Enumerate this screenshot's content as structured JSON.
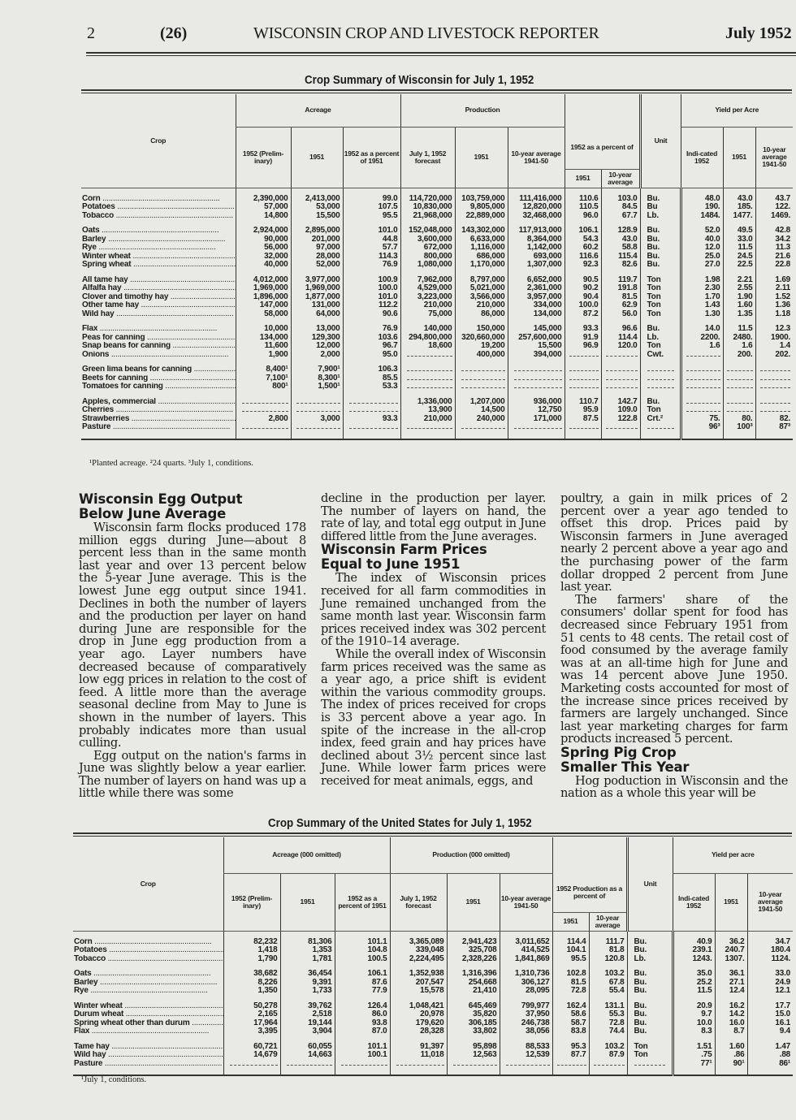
{
  "header": {
    "page_number": "2",
    "issue_page": "(26)",
    "publication": "WISCONSIN CROP AND LIVESTOCK REPORTER",
    "date": "July 1952"
  },
  "wi_table": {
    "title": "Crop Summary of Wisconsin for July 1, 1952",
    "headers": {
      "crop": "Crop",
      "acreage": "Acreage",
      "production": "Production",
      "pct_of": "1952 as a percent of",
      "unit": "Unit",
      "yield": "Yield per Acre",
      "acr_1952": "1952 (Prelim-inary)",
      "acr_1951": "1951",
      "acr_pct": "1952 as a percent of 1951",
      "prod_fc": "July 1, 1952 forecast",
      "prod_1951": "1951",
      "prod_avg": "10-year average 1941-50",
      "pct_1951": "1951",
      "pct_avg": "10-year average",
      "y_1952": "Indi-cated 1952",
      "y_1951": "1951",
      "y_avg": "10-year average 1941-50"
    },
    "groups": [
      [
        [
          "Corn",
          "2,390,000",
          "2,413,000",
          "99.0",
          "114,720,000",
          "103,759,000",
          "111,416,000",
          "110.6",
          "103.0",
          "Bu.",
          "48.0",
          "43.0",
          "43.7"
        ],
        [
          "Potatoes",
          "57,000",
          "53,000",
          "107.5",
          "10,830,000",
          "9,805,000",
          "12,820,000",
          "110.5",
          "84.5",
          "Bu",
          "190.",
          "185.",
          "122."
        ],
        [
          "Tobacco",
          "14,800",
          "15,500",
          "95.5",
          "21,968,000",
          "22,889,000",
          "32,468,000",
          "96.0",
          "67.7",
          "Lb.",
          "1484.",
          "1477.",
          "1469."
        ]
      ],
      [
        [
          "Oats",
          "2,924,000",
          "2,895,000",
          "101.0",
          "152,048,000",
          "143,302,000",
          "117,913,000",
          "106.1",
          "128.9",
          "Bu.",
          "52.0",
          "49.5",
          "42.8"
        ],
        [
          "Barley",
          "90,000",
          "201,000",
          "44.8",
          "3,600,000",
          "6,633,000",
          "8,364,000",
          "54.3",
          "43.0",
          "Bu.",
          "40.0",
          "33.0",
          "34.2"
        ],
        [
          "Rye",
          "56,000",
          "97,000",
          "57.7",
          "672,000",
          "1,116,000",
          "1,142,000",
          "60.2",
          "58.8",
          "Bu.",
          "12.0",
          "11.5",
          "11.3"
        ],
        [
          "Winter wheat",
          "32,000",
          "28,000",
          "114.3",
          "800,000",
          "686,000",
          "693,000",
          "116.6",
          "115.4",
          "Bu.",
          "25.0",
          "24.5",
          "21.6"
        ],
        [
          "Spring wheat",
          "40,000",
          "52,000",
          "76.9",
          "1,080,000",
          "1,170,000",
          "1,307,000",
          "92.3",
          "82.6",
          "Bu.",
          "27.0",
          "22.5",
          "22.8"
        ]
      ],
      [
        [
          "All tame hay",
          "4,012,000",
          "3,977,000",
          "100.9",
          "7,962,000",
          "8,797,000",
          "6,652,000",
          "90.5",
          "119.7",
          "Ton",
          "1.98",
          "2.21",
          "1.69"
        ],
        [
          "Alfalfa hay",
          "1,969,000",
          "1,969,000",
          "100.0",
          "4,529,000",
          "5,021,000",
          "2,361,000",
          "90.2",
          "191.8",
          "Ton",
          "2.30",
          "2.55",
          "2.11"
        ],
        [
          "Clover and timothy hay",
          "1,896,000",
          "1,877,000",
          "101.0",
          "3,223,000",
          "3,566,000",
          "3,957,000",
          "90.4",
          "81.5",
          "Ton",
          "1.70",
          "1.90",
          "1.52"
        ],
        [
          "Other tame hay",
          "147,000",
          "131,000",
          "112.2",
          "210,000",
          "210,000",
          "334,000",
          "100.0",
          "62.9",
          "Ton",
          "1.43",
          "1.60",
          "1.36"
        ],
        [
          "Wild hay",
          "58,000",
          "64,000",
          "90.6",
          "75,000",
          "86,000",
          "134,000",
          "87.2",
          "56.0",
          "Ton",
          "1.30",
          "1.35",
          "1.18"
        ]
      ],
      [
        [
          "Flax",
          "10,000",
          "13,000",
          "76.9",
          "140,000",
          "150,000",
          "145,000",
          "93.3",
          "96.6",
          "Bu.",
          "14.0",
          "11.5",
          "12.3"
        ],
        [
          "Peas for canning",
          "134,000",
          "129,300",
          "103.6",
          "294,800,000",
          "320,660,000",
          "257,600,000",
          "91.9",
          "114.4",
          "Lb.",
          "2200.",
          "2480.",
          "1900."
        ],
        [
          "Snap beans for canning",
          "11,600",
          "12,000",
          "96.7",
          "18,600",
          "19,200",
          "15,500",
          "96.9",
          "120.0",
          "Ton",
          "1.6",
          "1.6",
          "1.4"
        ],
        [
          "Onions",
          "1,900",
          "2,000",
          "95.0",
          "",
          "400,000",
          "394,000",
          "",
          "",
          "Cwt.",
          "",
          "200.",
          "202."
        ]
      ],
      [
        [
          "Green lima beans for canning",
          "8,400¹",
          "7,900¹",
          "106.3",
          "",
          "",
          "",
          "",
          "",
          "",
          "",
          "",
          ""
        ],
        [
          "Beets for canning",
          "7,100¹",
          "8,300¹",
          "85.5",
          "",
          "",
          "",
          "",
          "",
          "",
          "",
          "",
          ""
        ],
        [
          "Tomatoes for canning",
          "800¹",
          "1,500¹",
          "53.3",
          "",
          "",
          "",
          "",
          "",
          "",
          "",
          "",
          ""
        ]
      ],
      [
        [
          "Apples, commercial",
          "",
          "",
          "",
          "1,336,000",
          "1,207,000",
          "936,000",
          "110.7",
          "142.7",
          "Bu.",
          "",
          "",
          ""
        ],
        [
          "Cherries",
          "",
          "",
          "",
          "13,900",
          "14,500",
          "12,750",
          "95.9",
          "109.0",
          "Ton",
          "",
          "",
          ""
        ],
        [
          "Strawberries",
          "2,800",
          "3,000",
          "93.3",
          "210,000",
          "240,000",
          "171,000",
          "87.5",
          "122.8",
          "Crt.²",
          "75.",
          "80.",
          "82."
        ],
        [
          "Pasture",
          "",
          "",
          "",
          "",
          "",
          "",
          "",
          "",
          "",
          "96³",
          "100³",
          "87³"
        ]
      ]
    ],
    "footnote": "¹Planted acreage.   ²24 quarts.   ³July 1, conditions."
  },
  "articles": {
    "col1": {
      "heading1": "Wisconsin Egg Output",
      "heading2": "Below June Average",
      "paras": [
        "Wisconsin farm flocks produced 178 million eggs during June—about 8 percent less than in the same month last year and over 13 percent below the 5-year June average. This is the lowest June egg output since 1941. Declines in both the number of layers and the production per layer on hand during June are responsible for the drop in June egg production from a year ago. Layer numbers have decreased because of comparatively low egg prices in relation to the cost of feed. A little more than the average seasonal decline from May to June is shown in the number of layers. This probably indicates more than usual culling.",
        "Egg output on the nation's farms in June was slightly below a year earlier. The number of layers on hand was up a little while there was some"
      ]
    },
    "col2": {
      "cont": "decline in the production per layer. The number of layers on hand, the rate of lay, and total egg output in June differed little from the June averages.",
      "heading1": "Wisconsin Farm Prices",
      "heading2": "Equal to June 1951",
      "paras": [
        "The index of Wisconsin prices received for all farm commodities in June remained unchanged from the same month last year. Wisconsin farm prices received index was 302 percent of the 1910–14 average.",
        "While the overall index of Wisconsin farm prices received was the same as a year ago, a price shift is evident within the various commodity groups. The index of prices received for crops is 33 percent above a year ago. In spite of the increase in the all-crop index, feed grain and hay prices have declined about 3½ percent since last June. While lower farm prices were received for meat animals, eggs, and"
      ]
    },
    "col3": {
      "cont": "poultry, a gain in milk prices of 2 percent over a year ago tended to offset this drop. Prices paid by Wisconsin farmers in June averaged nearly 2 percent above a year ago and the purchasing power of the farm dollar dropped 2 percent from June last year.",
      "paras": [
        "The farmers' share of the consumers' dollar spent for food has decreased since February 1951 from 51 cents to 48 cents. The retail cost of food consumed by the average family was at an all-time high for June and was 14 percent above June 1950. Marketing costs accounted for most of the increase since prices received by farmers are largely unchanged. Since last year marketing charges for farm products increased 5 percent."
      ],
      "heading1": "Spring Pig Crop",
      "heading2": "Smaller This Year",
      "paras2": [
        "Hog poduction in Wisconsin and the nation as a whole this year will be"
      ]
    }
  },
  "us_table": {
    "title": "Crop Summary of the United States for July 1, 1952",
    "headers": {
      "crop": "Crop",
      "acreage": "Acreage (000 omitted)",
      "production": "Production (000 omitted)",
      "pct_of": "1952 Production as a percent of",
      "unit": "Unit",
      "yield": "Yield per acre",
      "acr_1952": "1952 (Prelim-inary)",
      "acr_1951": "1951",
      "acr_pct": "1952 as a percent of 1951",
      "prod_fc": "July 1, 1952 forecast",
      "prod_1951": "1951",
      "prod_avg": "10-year average 1941-50",
      "pct_1951": "1951",
      "pct_avg": "10-year average",
      "y_1952": "Indi-cated 1952",
      "y_1951": "1951",
      "y_avg": "10-year average 1941-50"
    },
    "groups": [
      [
        [
          "Corn",
          "82,232",
          "81,306",
          "101.1",
          "3,365,089",
          "2,941,423",
          "3,011,652",
          "114.4",
          "111.7",
          "Bu.",
          "40.9",
          "36.2",
          "34.7"
        ],
        [
          "Potatoes",
          "1,418",
          "1,353",
          "104.8",
          "339,048",
          "325,708",
          "414,525",
          "104.1",
          "81.8",
          "Bu.",
          "239.1",
          "240.7",
          "180.4"
        ],
        [
          "Tobacco",
          "1,790",
          "1,781",
          "100.5",
          "2,224,495",
          "2,328,226",
          "1,841,869",
          "95.5",
          "120.8",
          "Lb.",
          "1243.",
          "1307.",
          "1124."
        ]
      ],
      [
        [
          "Oats",
          "38,682",
          "36,454",
          "106.1",
          "1,352,938",
          "1,316,396",
          "1,310,736",
          "102.8",
          "103.2",
          "Bu.",
          "35.0",
          "36.1",
          "33.0"
        ],
        [
          "Barley",
          "8,226",
          "9,391",
          "87.6",
          "207,547",
          "254,668",
          "306,127",
          "81.5",
          "67.8",
          "Bu.",
          "25.2",
          "27.1",
          "24.9"
        ],
        [
          "Rye",
          "1,350",
          "1,733",
          "77.9",
          "15,578",
          "21,410",
          "28,095",
          "72.8",
          "55.4",
          "Bu.",
          "11.5",
          "12.4",
          "12.1"
        ]
      ],
      [
        [
          "Winter wheat",
          "50,278",
          "39,762",
          "126.4",
          "1,048,421",
          "645,469",
          "799,977",
          "162.4",
          "131.1",
          "Bu.",
          "20.9",
          "16.2",
          "17.7"
        ],
        [
          "Durum wheat",
          "2,165",
          "2,518",
          "86.0",
          "20,978",
          "35,820",
          "37,950",
          "58.6",
          "55.3",
          "Bu.",
          "9.7",
          "14.2",
          "15.0"
        ],
        [
          "Spring wheat other than durum",
          "17,964",
          "19,144",
          "93.8",
          "179,620",
          "306,185",
          "246,738",
          "58.7",
          "72.8",
          "Bu.",
          "10.0",
          "16.0",
          "16.1"
        ],
        [
          "Flax",
          "3,395",
          "3,904",
          "87.0",
          "28,328",
          "33,802",
          "38,056",
          "83.8",
          "74.4",
          "Bu.",
          "8.3",
          "8.7",
          "9.4"
        ]
      ],
      [
        [
          "Tame hay",
          "60,721",
          "60,055",
          "101.1",
          "91,397",
          "95,898",
          "88,533",
          "95.3",
          "103.2",
          "Ton",
          "1.51",
          "1.60",
          "1.47"
        ],
        [
          "Wild hay",
          "14,679",
          "14,663",
          "100.1",
          "11,018",
          "12,563",
          "12,539",
          "87.7",
          "87.9",
          "Ton",
          ".75",
          ".86",
          ".88"
        ],
        [
          "Pasture",
          "",
          "",
          "",
          "",
          "",
          "",
          "",
          "",
          "",
          "77¹",
          "90¹",
          "86¹"
        ]
      ]
    ],
    "footnote": "¹July 1, conditions."
  }
}
